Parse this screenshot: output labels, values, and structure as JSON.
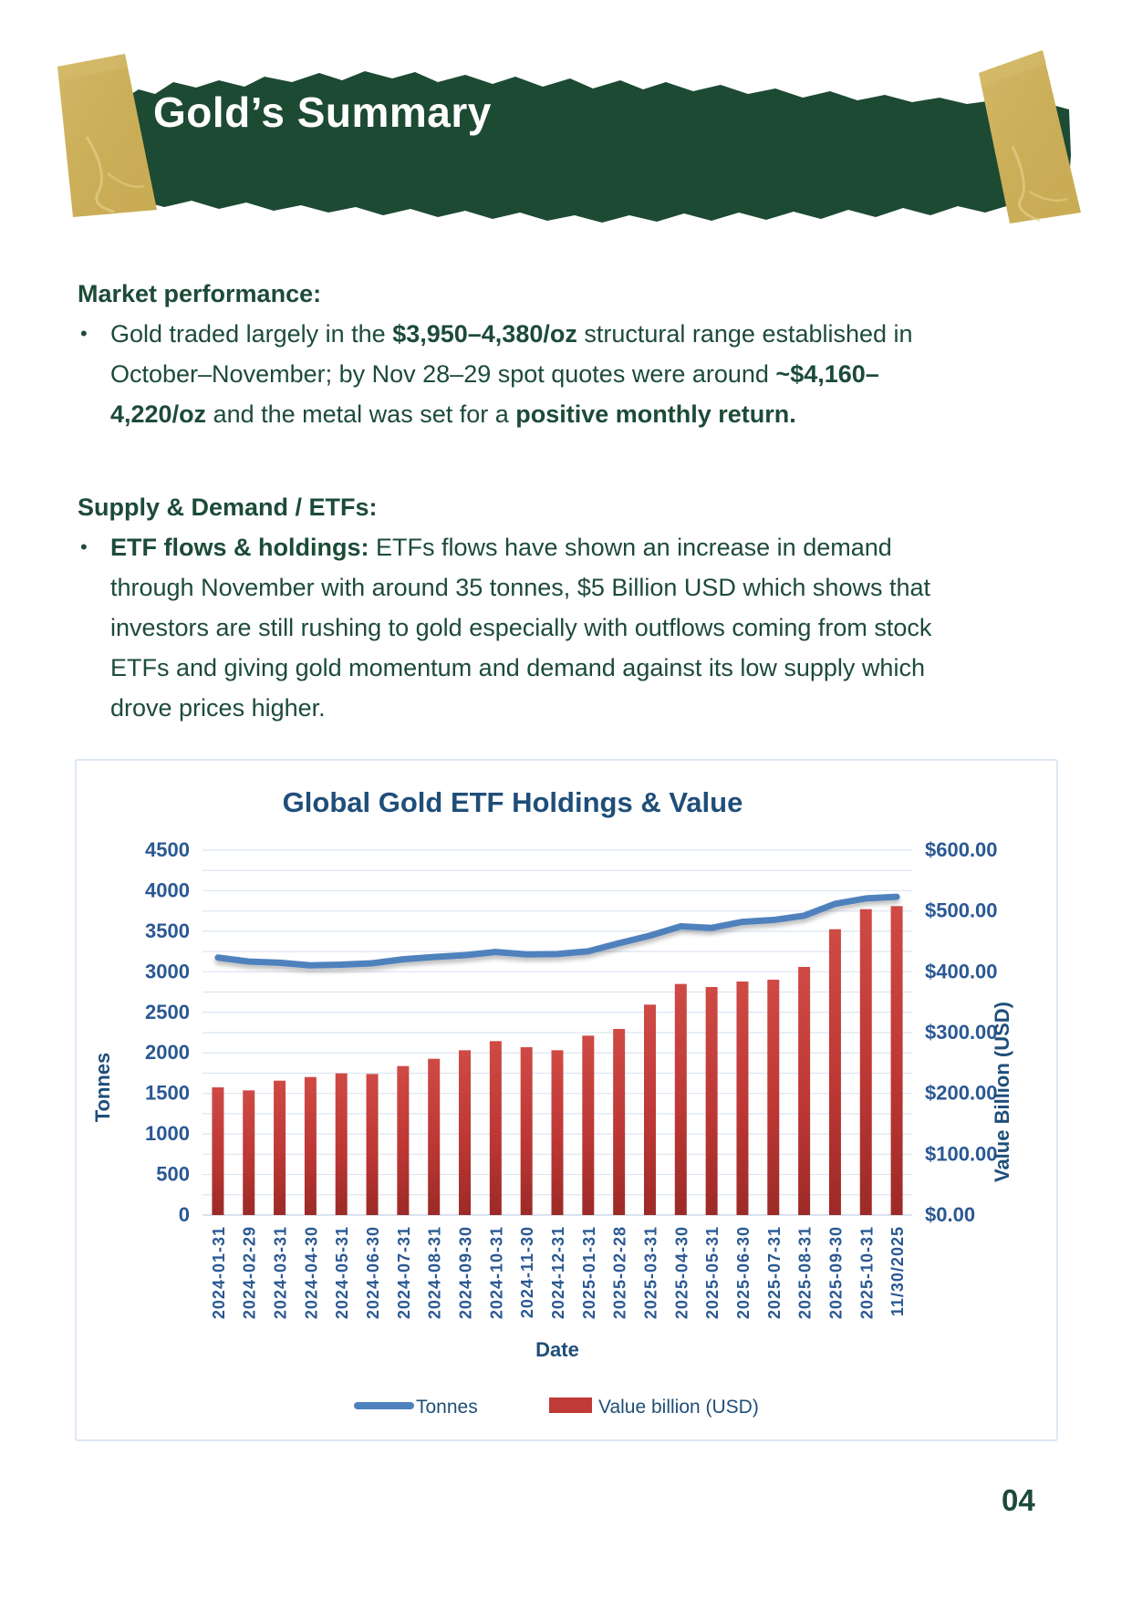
{
  "banner": {
    "title": "Gold’s Summary"
  },
  "sections": [
    {
      "heading": "Market performance:",
      "bullets": [
        {
          "runs": [
            {
              "t": "Gold traded largely in the "
            },
            {
              "t": "$3,950–4,380/oz",
              "b": true
            },
            {
              "t": " structural range established in October–November; by Nov 28–29 spot quotes were around "
            },
            {
              "t": "~$4,160–4,220/oz",
              "b": true
            },
            {
              "t": " and the metal was set for a "
            },
            {
              "t": "positive monthly return.",
              "b": true
            }
          ]
        }
      ]
    },
    {
      "heading": "Supply & Demand / ETFs:",
      "bullets": [
        {
          "runs": [
            {
              "t": "ETF flows & holdings:",
              "b": true
            },
            {
              "t": " ETFs flows have shown an increase in demand through November with around 35 tonnes, $5 Billion USD which shows that investors are still rushing to gold especially with outflows coming from stock ETFs and giving gold momentum and demand against its low supply which drove prices higher."
            }
          ]
        }
      ]
    }
  ],
  "chart_data": {
    "type": "combo",
    "title": "Global Gold ETF Holdings & Value",
    "xlabel": "Date",
    "ylabel_left": "Tonnes",
    "ylabel_right": "Value Billion (USD)",
    "ylim_left": [
      0,
      4500
    ],
    "ylim_right": [
      0,
      600
    ],
    "yticks_left": [
      4500,
      4000,
      3500,
      3000,
      2500,
      2000,
      1500,
      1000,
      500,
      0
    ],
    "yticks_right": [
      "$600.00",
      "$500.00",
      "$400.00",
      "$300.00",
      "$200.00",
      "$100.00",
      "$0.00"
    ],
    "grid_interval_left": 250,
    "grid_on": true,
    "legend_position": "bottom",
    "categories": [
      "2024-01-31",
      "2024-02-29",
      "2024-03-31",
      "2024-04-30",
      "2024-05-31",
      "2024-06-30",
      "2024-07-31",
      "2024-08-31",
      "2024-09-30",
      "2024-10-31",
      "2024-11-30",
      "2024-12-31",
      "2025-01-31",
      "2025-02-28",
      "2025-03-31",
      "2025-04-30",
      "2025-05-31",
      "2025-06-30",
      "2025-07-31",
      "2025-08-31",
      "2025-09-30",
      "2025-10-31",
      "11/30/2025"
    ],
    "series": [
      {
        "name": "Tonnes",
        "type": "line",
        "axis": "left",
        "color": "#4F81BD",
        "values": [
          3175,
          3126,
          3112,
          3080,
          3088,
          3105,
          3154,
          3182,
          3205,
          3244,
          3215,
          3219,
          3253,
          3352,
          3445,
          3561,
          3541,
          3616,
          3639,
          3692,
          3838,
          3905,
          3925
        ]
      },
      {
        "name": "Value billion (USD)",
        "type": "bar",
        "axis": "right",
        "color": "#C03A37",
        "values": [
          210,
          205,
          221,
          227,
          233,
          232,
          245,
          257,
          271,
          286,
          276,
          271,
          295,
          306,
          346,
          380,
          375,
          384,
          387,
          408,
          470,
          503,
          508
        ]
      }
    ],
    "colors": {
      "title": "#1F4E79",
      "tick_labels": "#2A5893",
      "gridline": "#dbe5f1",
      "baseline": "#c2d1e4",
      "line_series": "#4F81BD",
      "bar_series": "#C03A37"
    }
  },
  "page": {
    "number": "04"
  }
}
